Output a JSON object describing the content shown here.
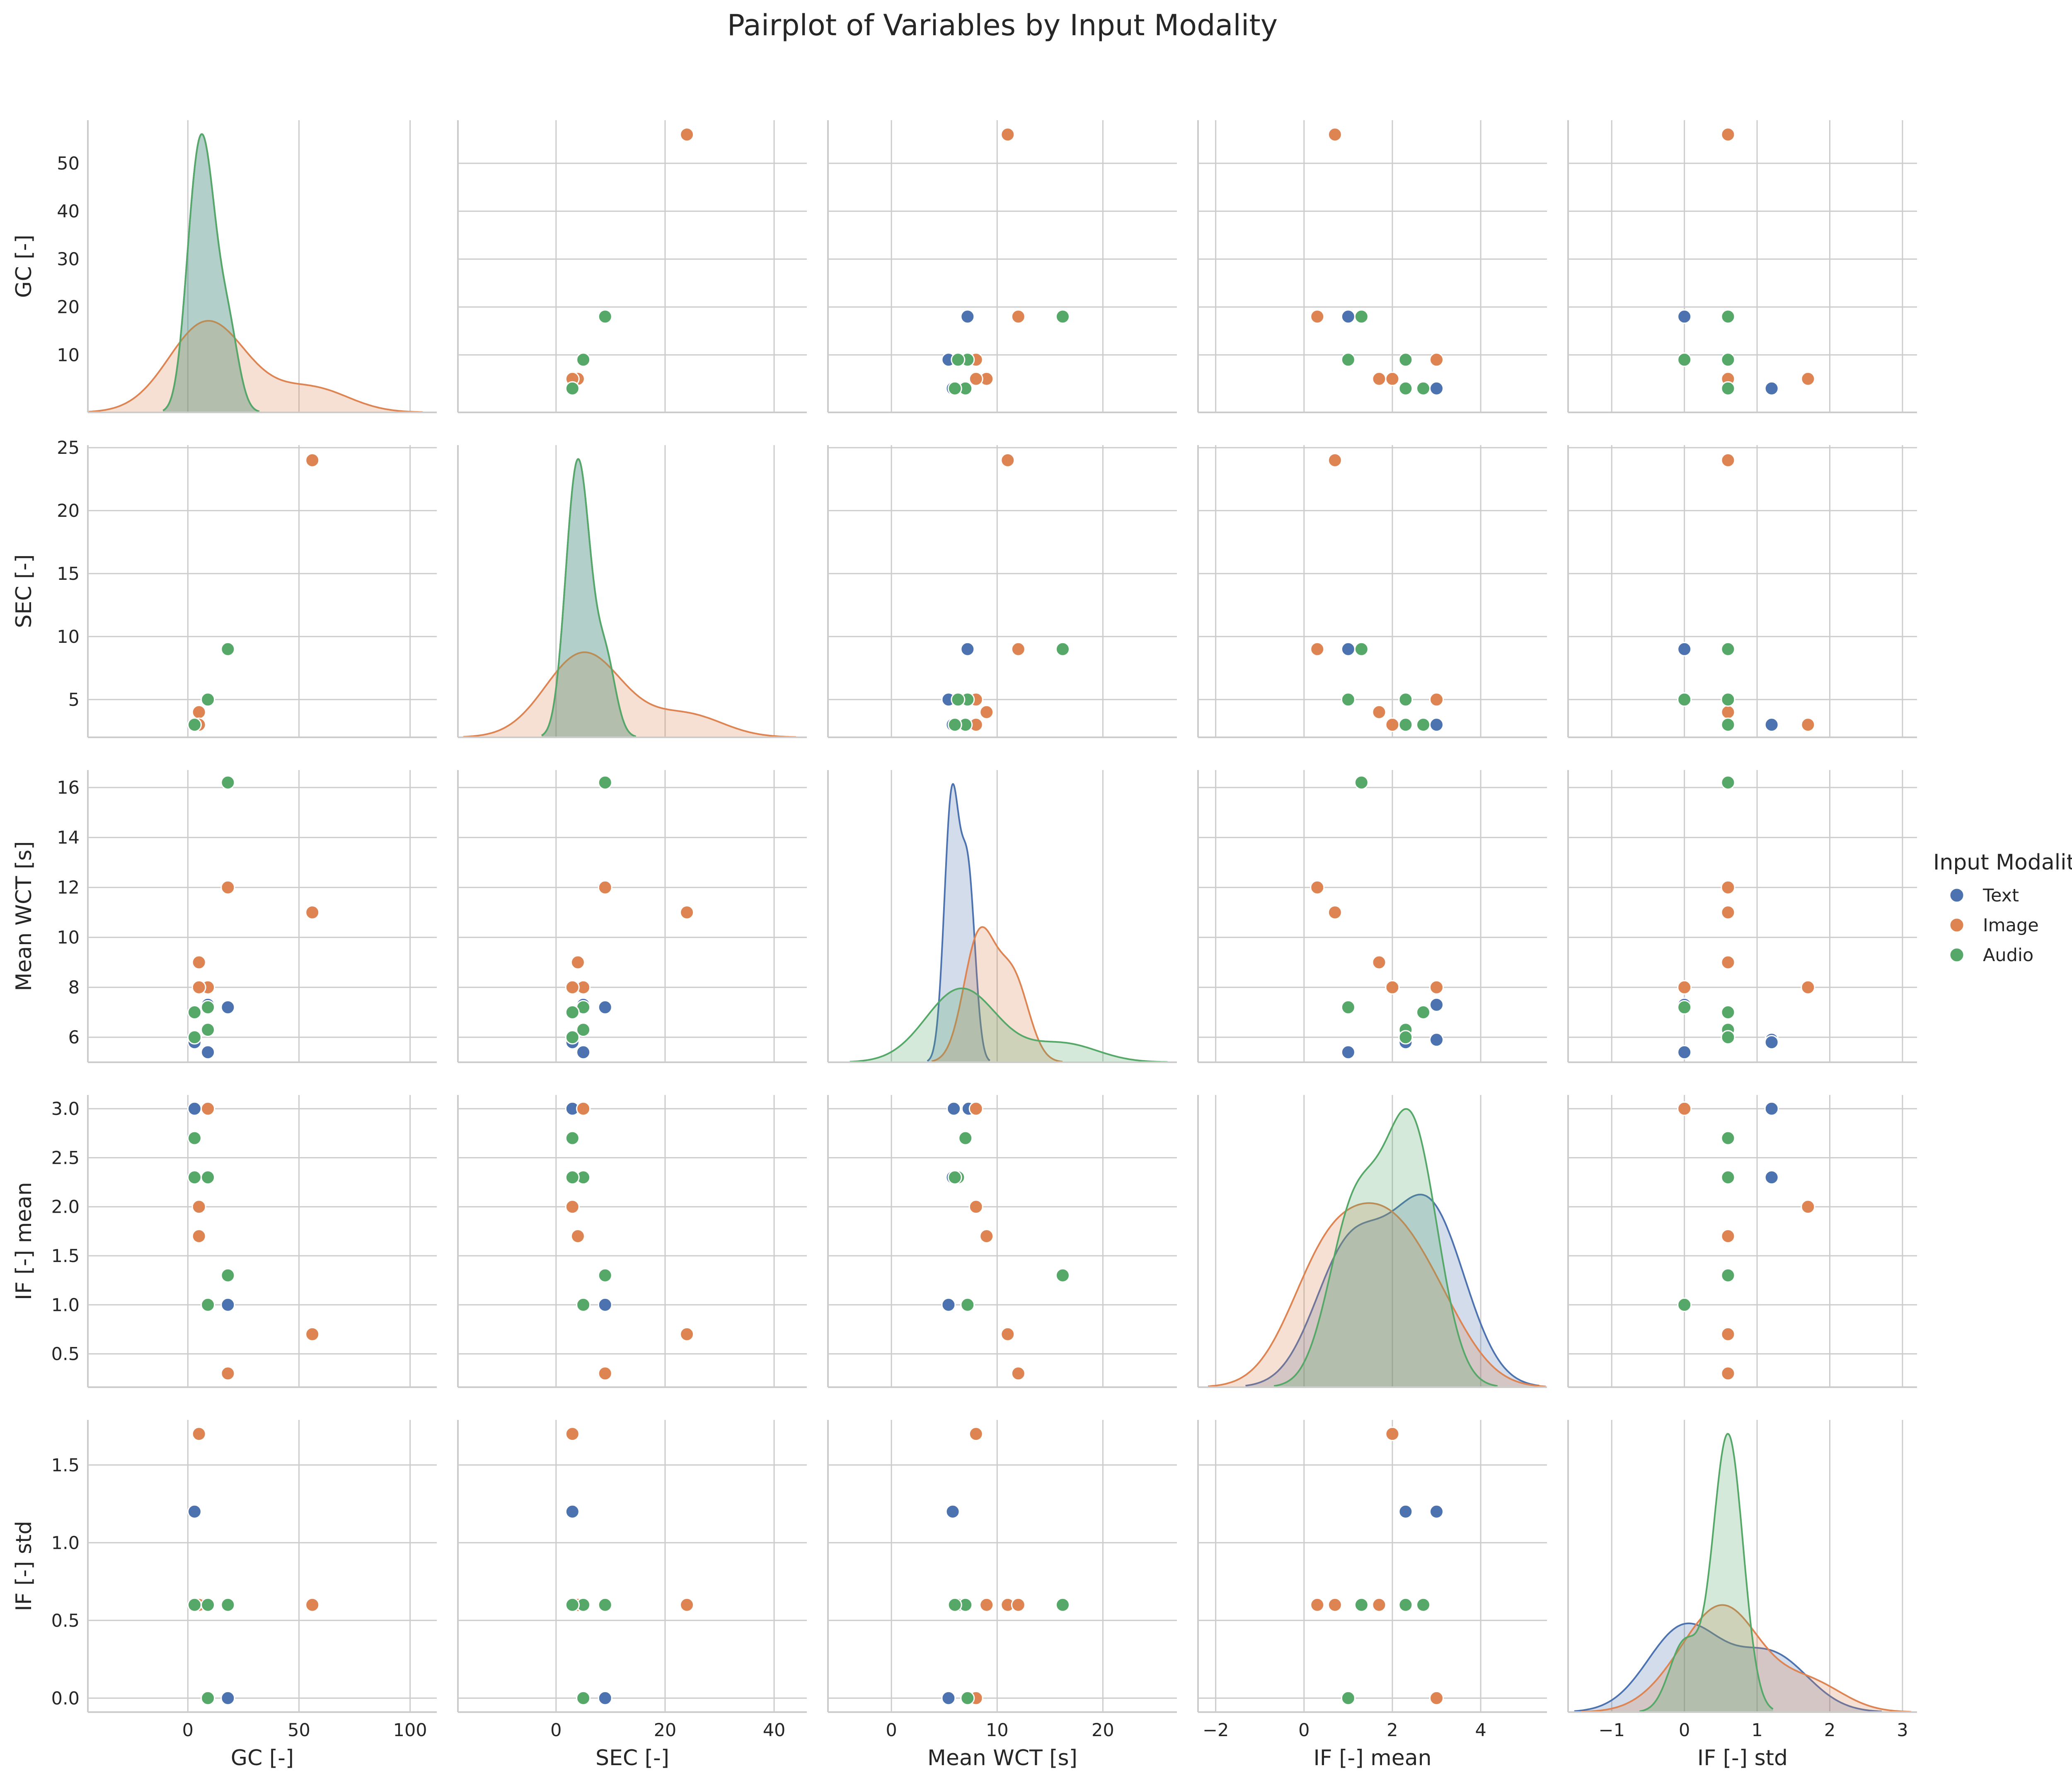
{
  "chart_data": {
    "type": "pairplot",
    "title": "Pairplot of Variables by Input Modality",
    "variables": [
      "GC [-]",
      "SEC [-]",
      "Mean WCT [s]",
      "IF [-] mean",
      "IF [-] std"
    ],
    "hue_title": "Input Modality",
    "series": [
      {
        "name": "Text",
        "color": "#4c72b0",
        "points": [
          [
            3,
            3,
            5.9,
            3.0,
            1.2
          ],
          [
            9,
            5,
            5.4,
            1.0,
            0.0
          ],
          [
            18,
            9,
            7.2,
            1.0,
            0.0
          ],
          [
            9,
            5,
            7.3,
            3.0,
            0.0
          ],
          [
            3,
            3,
            5.8,
            2.3,
            1.2
          ]
        ]
      },
      {
        "name": "Image",
        "color": "#dd8452",
        "points": [
          [
            56,
            24,
            11.0,
            0.7,
            0.6
          ],
          [
            18,
            9,
            12.0,
            0.3,
            0.6
          ],
          [
            9,
            5,
            8.0,
            3.0,
            0.0
          ],
          [
            5,
            4,
            9.0,
            1.7,
            0.6
          ],
          [
            5,
            3,
            8.0,
            2.0,
            1.7
          ]
        ]
      },
      {
        "name": "Audio",
        "color": "#55a868",
        "points": [
          [
            18,
            9,
            16.2,
            1.3,
            0.6
          ],
          [
            9,
            5,
            7.2,
            1.0,
            0.0
          ],
          [
            9,
            5,
            6.3,
            2.3,
            0.6
          ],
          [
            3,
            3,
            7.0,
            2.7,
            0.6
          ],
          [
            3,
            3,
            6.0,
            2.3,
            0.6
          ]
        ]
      }
    ],
    "axes": [
      {
        "name": "GC [-]",
        "range": [
          -45,
          112
        ],
        "ticks": [
          0,
          50,
          100
        ],
        "dist_ticks": [
          10,
          20,
          30,
          40,
          50
        ],
        "dist_range": [
          -2,
          59
        ]
      },
      {
        "name": "SEC [-]",
        "range": [
          -18,
          46
        ],
        "ticks": [
          0,
          20,
          40
        ],
        "dist_ticks": [
          5,
          10,
          15,
          20,
          25
        ],
        "dist_range": [
          2,
          25.2
        ]
      },
      {
        "name": "Mean WCT [s]",
        "range": [
          -6,
          27
        ],
        "ticks": [
          0,
          10,
          20
        ],
        "dist_ticks": [
          6,
          8,
          10,
          12,
          14,
          16
        ],
        "dist_range": [
          5.0,
          16.7
        ]
      },
      {
        "name": "IF [-] mean",
        "range": [
          -2.4,
          5.5
        ],
        "ticks": [
          -2,
          0,
          2,
          4
        ],
        "dist_ticks": [
          0.5,
          1.0,
          1.5,
          2.0,
          2.5,
          3.0
        ],
        "dist_range": [
          0.16,
          3.14
        ]
      },
      {
        "name": "IF [-] std",
        "range": [
          -1.6,
          3.2
        ],
        "ticks": [
          -1,
          0,
          1,
          2,
          3
        ],
        "dist_ticks": [
          0.0,
          0.5,
          1.0,
          1.5
        ],
        "dist_range": [
          -0.09,
          1.79
        ]
      }
    ],
    "tick_labels": {
      "x": [
        [
          "0",
          "50",
          "100"
        ],
        [
          "0",
          "20",
          "40"
        ],
        [
          "0",
          "10",
          "20"
        ],
        [
          "−2",
          "0",
          "2",
          "4"
        ],
        [
          "−1",
          "0",
          "1",
          "2",
          "3"
        ]
      ],
      "y": [
        [
          "10",
          "20",
          "30",
          "40",
          "50"
        ],
        [
          "5",
          "10",
          "15",
          "20",
          "25"
        ],
        [
          "6",
          "8",
          "10",
          "12",
          "14",
          "16"
        ],
        [
          "0.5",
          "1.0",
          "1.5",
          "2.0",
          "2.5",
          "3.0"
        ],
        [
          "0.0",
          "0.5",
          "1.0",
          "1.5"
        ]
      ]
    },
    "diagonal": "kde",
    "grid": true,
    "legend_position": "right"
  }
}
